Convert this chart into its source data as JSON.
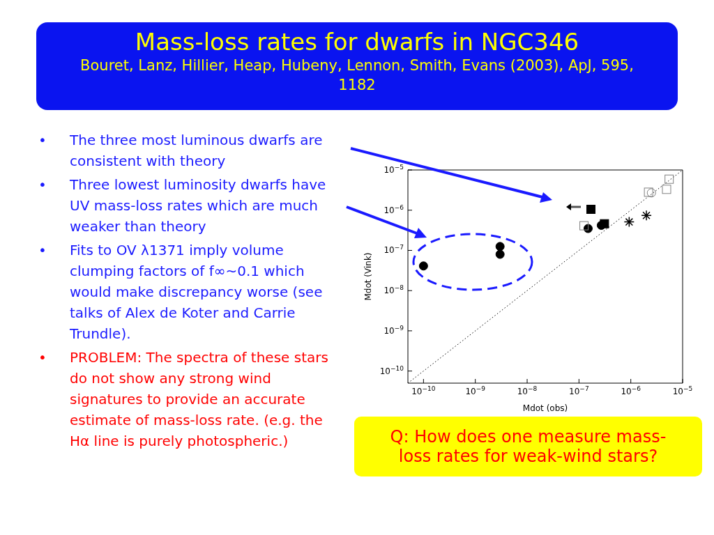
{
  "chart_data": {
    "type": "scatter",
    "title": "Mass-loss rates for dwarfs in NGC346",
    "subtitle": "Bouret, Lanz, Hillier, Heap, Hubeny, Lennon, Smith, Evans (2003), ApJ, 595, 1182",
    "xlabel": "Mdot (obs)",
    "ylabel": "Mdot (Vink)",
    "log": "xy",
    "legend": false,
    "grid": false,
    "xlim": [
      5e-11,
      1e-05
    ],
    "ylim": [
      5e-11,
      1e-05
    ],
    "xticks": [
      {
        "value": 1e-10,
        "label": "10$^{−10}$"
      },
      {
        "value": 1e-09,
        "label": "10$^{−9}$"
      },
      {
        "value": 1e-08,
        "label": "10$^{−8}$"
      },
      {
        "value": 1e-07,
        "label": "10$^{−7}$"
      },
      {
        "value": 1e-06,
        "label": "10$^{−6}$"
      },
      {
        "value": 1e-05,
        "label": "10$^{−5}$"
      }
    ],
    "yticks": [
      {
        "value": 1e-10,
        "label": "10$^{−10}$"
      },
      {
        "value": 1e-09,
        "label": "10$^{−9}$"
      },
      {
        "value": 1e-08,
        "label": "10$^{−8}$"
      },
      {
        "value": 1e-07,
        "label": "10$^{−7}$"
      },
      {
        "value": 1e-06,
        "label": "10$^{−6}$"
      },
      {
        "value": 1e-05,
        "label": "10$^{−5}$"
      }
    ],
    "series": [
      {
        "type": "line",
        "line_style": "dotted",
        "color": "#000000",
        "x": [
          5e-11,
          1e-05
        ],
        "values": [
          5e-11,
          1e-05
        ]
      },
      {
        "type": "scatter",
        "marker": "circle",
        "color": "#000000",
        "x": [
          1e-10,
          3e-09,
          3e-09,
          1.5e-07,
          2.7e-07
        ],
        "values": [
          4.1e-08,
          1.25e-07,
          8e-08,
          3.5e-07,
          4.2e-07
        ]
      },
      {
        "type": "scatter",
        "marker": "square",
        "color": "#000000",
        "x": [
          1.7e-07,
          3.1e-07
        ],
        "values": [
          1.05e-06,
          4.6e-07
        ]
      },
      {
        "type": "scatter",
        "marker": "square",
        "color": "#808080",
        "x": [
          1.25e-07,
          2.2e-06,
          4.9e-06,
          5.5e-06
        ],
        "values": [
          4.1e-07,
          2.8e-06,
          3.3e-06,
          5.9e-06
        ]
      },
      {
        "type": "scatter",
        "marker": "circle",
        "color": "#808080",
        "x": [
          2.5e-06
        ],
        "values": [
          2.7e-06
        ]
      },
      {
        "type": "scatter",
        "marker": "cross",
        "color": "#000000",
        "x": [
          9.3e-07,
          2e-06
        ],
        "values": [
          5.1e-07,
          7.4e-07
        ]
      }
    ],
    "annotations": [
      "• The three most luminous dwarfs are consistent with theory",
      "• Three lowest luminosity dwarfs have UV mass-loss rates which are much weaker than theory",
      "• Fits to OV λ1371 imply volume clumping factors of f∞~0.1 which would make discrepancy worse (see talks of Alex de Koter and Carrie Trundle).",
      "• PROBLEM: The spectra of these stars do not show any strong wind signatures to provide an accurate estimate of mass-loss rate. (e.g. the Hα line is purely photospheric.)",
      "Q: How does one measure mass-loss rates for weak-wind stars?"
    ]
  }
}
